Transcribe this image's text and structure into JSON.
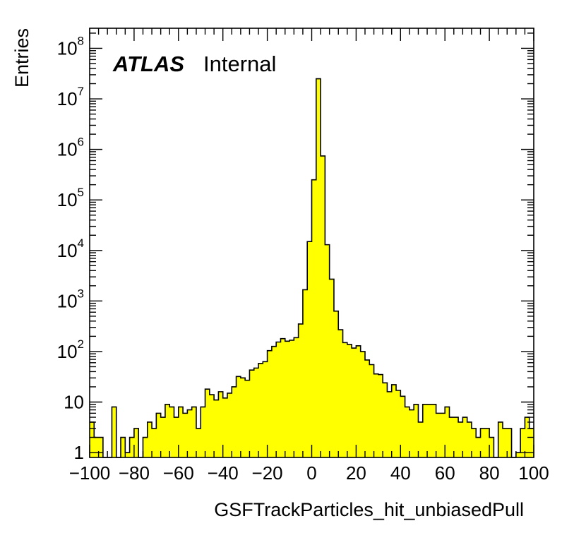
{
  "chart_data": {
    "type": "bar",
    "histogram": true,
    "xlabel": "GSFTrackParticles_hit_unbiasedPull",
    "ylabel": "Entries",
    "annotation": {
      "experiment": "ATLAS",
      "status": "Internal"
    },
    "colors": {
      "fill": "#ffff00",
      "line": "#000000"
    },
    "x_range": [
      -100,
      100
    ],
    "y_log": true,
    "ylim": [
      0.8,
      250000000.0
    ],
    "x_tick_labels": [
      "−100",
      "−80",
      "−60",
      "−40",
      "−20",
      "0",
      "20",
      "40",
      "60",
      "80",
      "100"
    ],
    "x_ticks": [
      -100,
      -80,
      -60,
      -40,
      -20,
      0,
      20,
      40,
      60,
      80,
      100
    ],
    "y_ticks": [
      {
        "value": 1,
        "base": "1",
        "exp": ""
      },
      {
        "value": 10,
        "base": "10",
        "exp": ""
      },
      {
        "value": 100,
        "base": "10",
        "exp": "2"
      },
      {
        "value": 1000,
        "base": "10",
        "exp": "3"
      },
      {
        "value": 10000,
        "base": "10",
        "exp": "4"
      },
      {
        "value": 100000,
        "base": "10",
        "exp": "5"
      },
      {
        "value": 1000000,
        "base": "10",
        "exp": "6"
      },
      {
        "value": 10000000,
        "base": "10",
        "exp": "7"
      },
      {
        "value": 100000000,
        "base": "10",
        "exp": "8"
      }
    ],
    "bin_width": 2,
    "bin_edges_start": -100,
    "values": [
      4,
      2,
      2,
      0,
      0,
      8,
      0,
      2,
      1,
      2,
      3,
      0,
      2,
      4,
      3,
      6,
      5,
      9,
      8,
      5,
      8,
      6,
      7,
      8,
      3,
      8,
      18,
      14,
      11,
      16,
      12,
      15,
      20,
      32,
      30,
      27,
      43,
      47,
      58,
      63,
      104,
      126,
      154,
      180,
      160,
      167,
      188,
      350,
      1670,
      15000,
      250000,
      25000000,
      740000,
      13000,
      2700,
      630,
      270,
      150,
      138,
      117,
      130,
      100,
      68,
      55,
      36,
      35,
      24,
      16,
      22,
      17,
      13,
      8,
      7,
      9,
      4,
      9,
      9,
      9,
      6,
      6,
      8,
      5,
      5,
      4,
      5,
      4,
      3,
      2,
      3,
      3,
      2,
      0,
      4,
      3,
      3,
      0,
      1,
      3,
      5,
      3
    ]
  }
}
